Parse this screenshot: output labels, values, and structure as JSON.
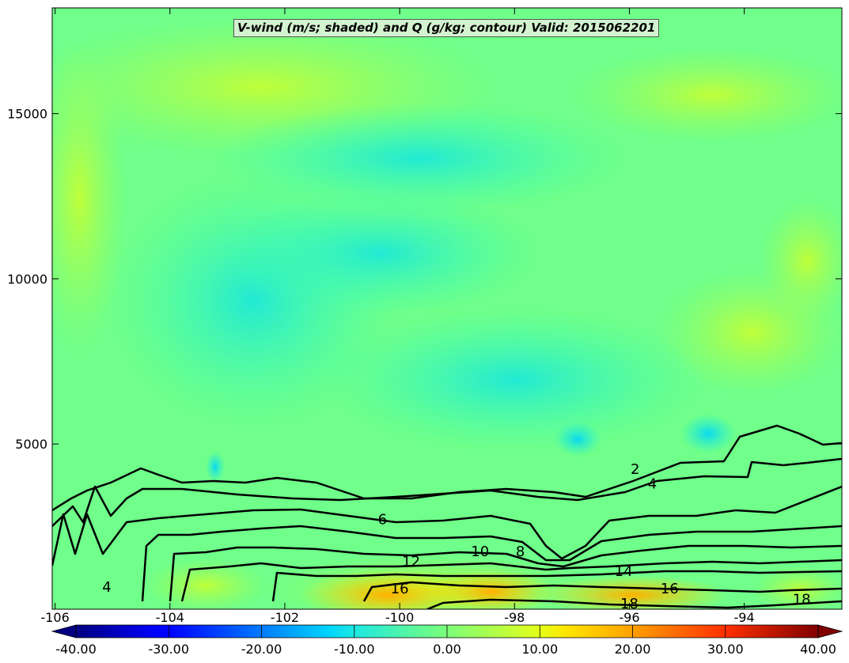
{
  "chart_data": {
    "type": "contour",
    "title": "V-wind (m/s; shaded) and Q (g/kg; contour) Valid: 2015062201",
    "x_ticks": [
      "-106",
      "-104",
      "-102",
      "-100",
      "-98",
      "-96",
      "-94"
    ],
    "x_tick_values": [
      -106,
      -104,
      -102,
      -100,
      -98,
      -96,
      -94
    ],
    "xlim": [
      -106.05,
      -92.3
    ],
    "y_ticks": [
      "5000",
      "10000",
      "15000"
    ],
    "y_tick_values": [
      5000,
      10000,
      15000
    ],
    "ylim": [
      0,
      18200
    ],
    "shading": {
      "variable": "V-wind (m/s)",
      "range": [
        -40,
        40
      ],
      "colorbar_labels": [
        "-40.00",
        "-30.00",
        "-20.00",
        "-10.00",
        "0.00",
        "10.00",
        "20.00",
        "30.00",
        "40.00"
      ],
      "colorbar_values": [
        -40,
        -30,
        -20,
        -10,
        0,
        10,
        20,
        30,
        40
      ],
      "colormap": "jet",
      "extend": "both"
    },
    "contours": {
      "variable": "Q (g/kg)",
      "levels": [
        2,
        4,
        6,
        8,
        10,
        12,
        14,
        16,
        18
      ],
      "labels": [
        {
          "text": "2",
          "x": -95.9,
          "y": 4100
        },
        {
          "text": "4",
          "x": -95.6,
          "y": 3650
        },
        {
          "text": "6",
          "x": -100.3,
          "y": 2570
        },
        {
          "text": "8",
          "x": -97.9,
          "y": 1600
        },
        {
          "text": "10",
          "x": -98.6,
          "y": 1600
        },
        {
          "text": "12",
          "x": -99.8,
          "y": 1300
        },
        {
          "text": "14",
          "x": -96.1,
          "y": 1000
        },
        {
          "text": "16",
          "x": -100.0,
          "y": 480
        },
        {
          "text": "16",
          "x": -95.3,
          "y": 480
        },
        {
          "text": "18",
          "x": -96.0,
          "y": 20
        },
        {
          "text": "18",
          "x": -93.0,
          "y": 150
        },
        {
          "text": "4",
          "x": -105.1,
          "y": 530
        }
      ]
    }
  }
}
